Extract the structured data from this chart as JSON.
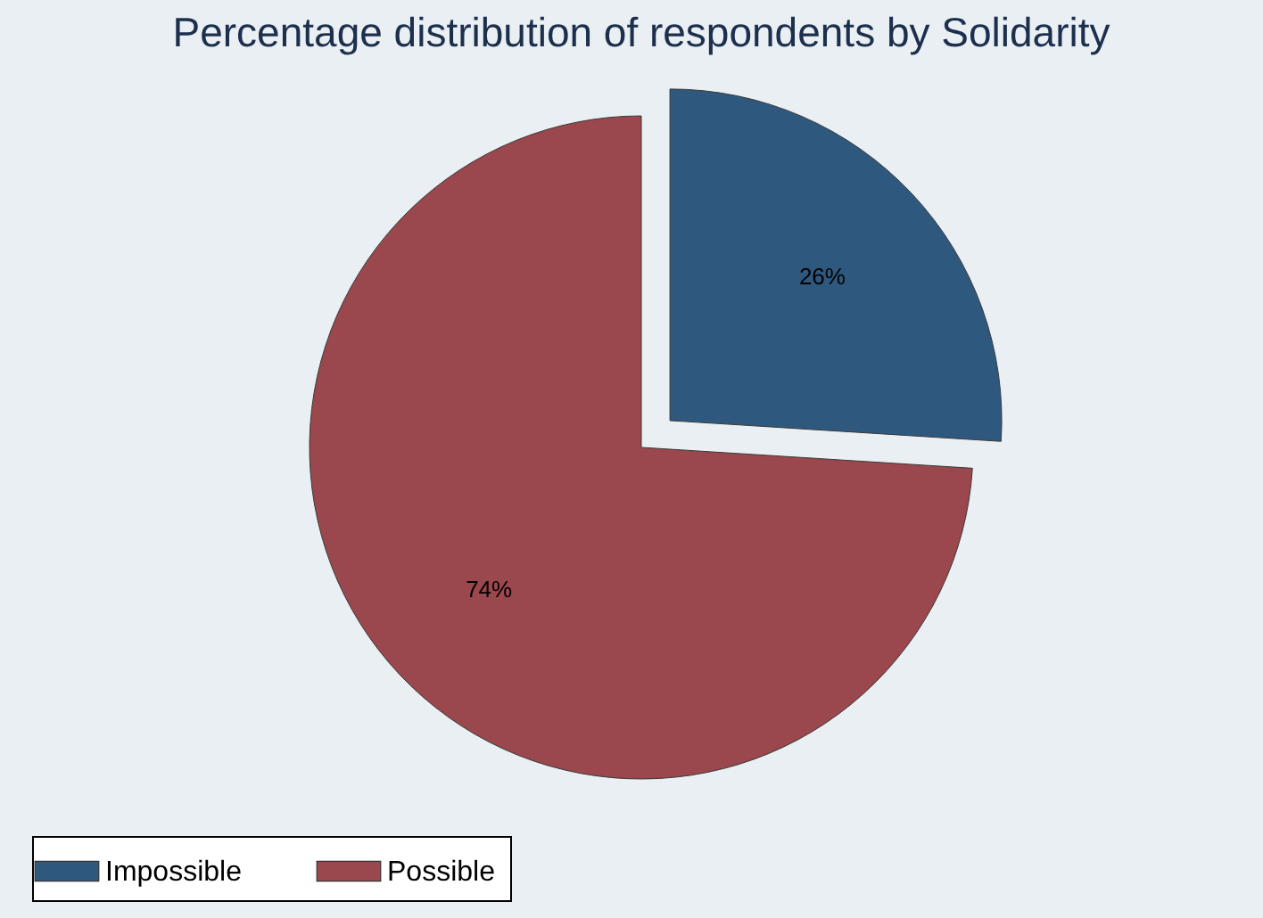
{
  "chart_data": {
    "type": "pie",
    "title": "Percentage distribution of respondents by Solidarity",
    "categories": [
      "Impossible",
      "Possible"
    ],
    "values": [
      26,
      74
    ],
    "colors": [
      "#2f587e",
      "#9a474d"
    ],
    "value_labels": [
      "26%",
      "74%"
    ],
    "legend": "bottom"
  }
}
